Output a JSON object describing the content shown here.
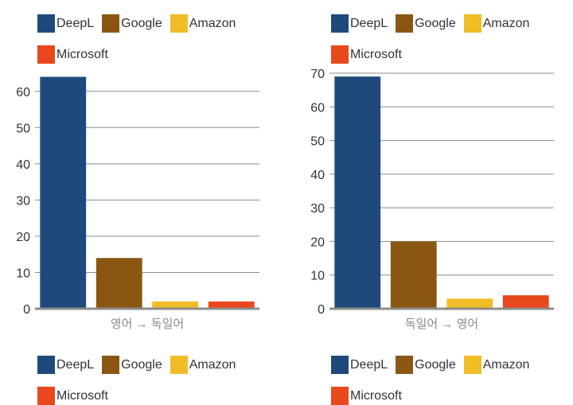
{
  "colors": {
    "DeepL": "#1d4a7a",
    "Google": "#8a5713",
    "Amazon": "#f0bd27",
    "Microsoft": "#e9481d"
  },
  "legend_items": [
    "DeepL",
    "Google",
    "Amazon",
    "Microsoft"
  ],
  "chart_data": [
    {
      "type": "bar",
      "xlabel": "영어 → 독일어",
      "ylabel": "",
      "categories": [
        "DeepL",
        "Google",
        "Amazon",
        "Microsoft"
      ],
      "values": [
        64,
        14,
        2,
        2
      ],
      "ylim": [
        0,
        65
      ],
      "yticks": [
        0,
        10,
        20,
        30,
        40,
        50,
        60
      ],
      "grid": true,
      "legend_position": "top and bottom"
    },
    {
      "type": "bar",
      "xlabel": "독일어 → 영어",
      "ylabel": "",
      "categories": [
        "DeepL",
        "Google",
        "Amazon",
        "Microsoft"
      ],
      "values": [
        69,
        20,
        3,
        4
      ],
      "ylim": [
        0,
        70
      ],
      "yticks": [
        0,
        10,
        20,
        30,
        40,
        50,
        60,
        70
      ],
      "grid": true,
      "legend_position": "top and bottom"
    }
  ]
}
